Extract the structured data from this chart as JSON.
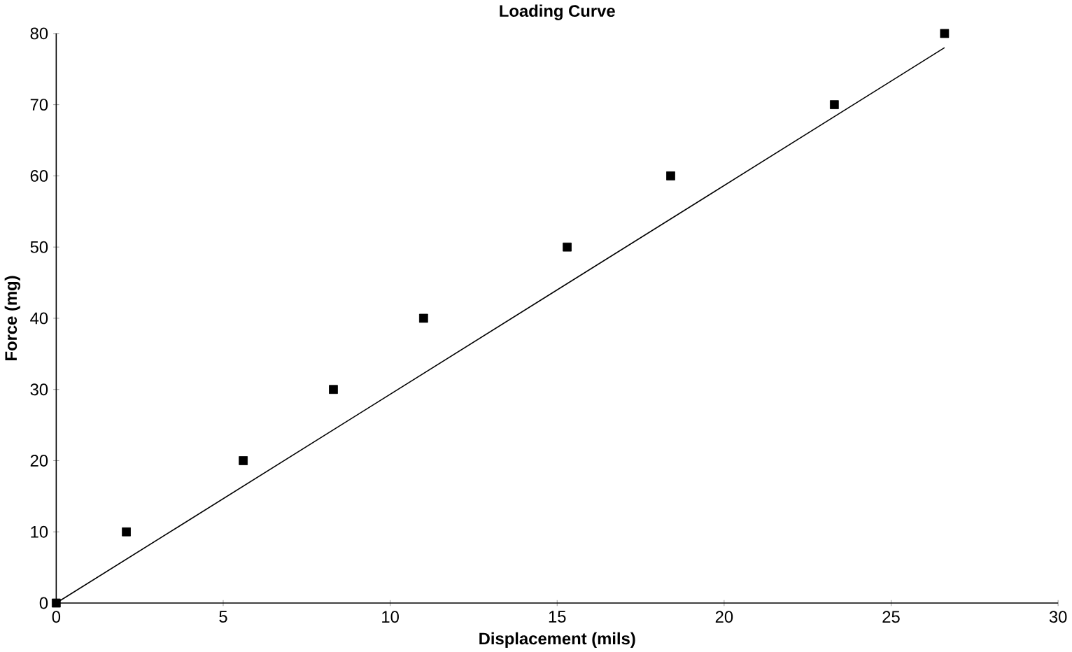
{
  "chart_data": {
    "type": "scatter",
    "title": "Loading Curve",
    "xlabel": "Displacement (mils)",
    "ylabel": "Force (mg)",
    "x": [
      0,
      2.1,
      5.6,
      8.3,
      11.0,
      15.3,
      18.4,
      23.3,
      26.6
    ],
    "series": [
      {
        "color": "#000000",
        "values": [
          0,
          10,
          20,
          30,
          40,
          50,
          60,
          70,
          80
        ],
        "marker": "square"
      },
      {
        "type": "line",
        "color": "#000000",
        "x": [
          0,
          26.6
        ],
        "values": [
          0,
          78
        ],
        "line_style": "solid"
      }
    ],
    "xlim": [
      0,
      30
    ],
    "ylim": [
      0,
      80
    ],
    "xticks": [
      0,
      5,
      10,
      15,
      20,
      25,
      30
    ],
    "yticks": [
      0,
      10,
      20,
      30,
      40,
      50,
      60,
      70,
      80
    ]
  }
}
